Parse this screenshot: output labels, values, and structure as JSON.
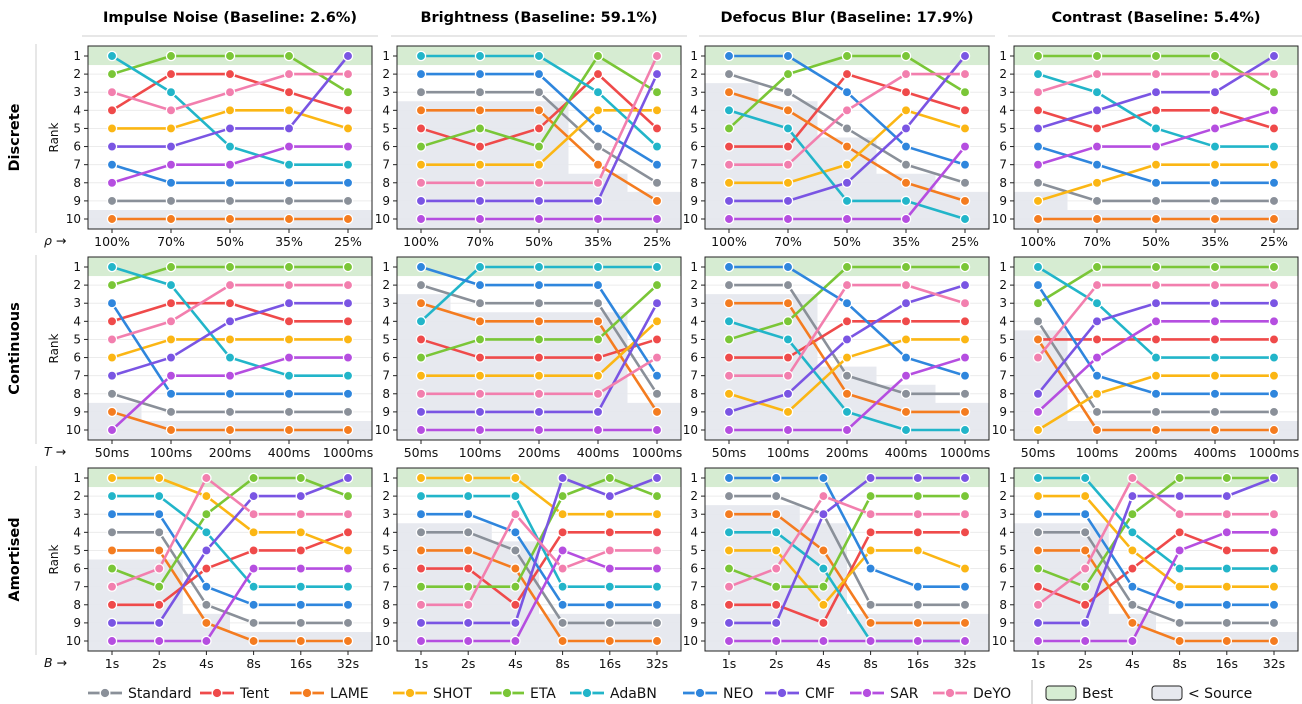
{
  "legend": {
    "series": [
      "Standard",
      "Tent",
      "LAME",
      "SHOT",
      "ETA",
      "AdaBN",
      "NEO",
      "CMF",
      "SAR",
      "DeYO"
    ],
    "best": "Best",
    "below_source": "< Source"
  },
  "colors": {
    "Standard": "#8a9099",
    "Tent": "#ef4a4a",
    "LAME": "#f47c20",
    "SHOT": "#fbb614",
    "ETA": "#7ac637",
    "AdaBN": "#22b5c9",
    "NEO": "#2f86dd",
    "CMF": "#7a55e3",
    "SAR": "#b54ee0",
    "DeYO": "#f27fae",
    "best_band": "#d6ecd2",
    "source_band": "#e6e8ee"
  },
  "columns": [
    "Impulse Noise (Baseline: 2.6%)",
    "Brightness (Baseline: 59.1%)",
    "Defocus Blur (Baseline: 17.9%)",
    "Contrast (Baseline: 5.4%)"
  ],
  "rows": [
    {
      "label": "Discrete",
      "y_label": "Rank",
      "x_prefix": "ρ →",
      "x_ticks": [
        "100%",
        "70%",
        "50%",
        "35%",
        "25%"
      ]
    },
    {
      "label": "Continuous",
      "y_label": "Rank",
      "x_prefix": "T →",
      "x_ticks": [
        "50ms",
        "100ms",
        "200ms",
        "400ms",
        "1000ms"
      ]
    },
    {
      "label": "Amortised",
      "y_label": "Rank",
      "x_prefix": "B →",
      "x_ticks": [
        "1s",
        "2s",
        "4s",
        "8s",
        "16s",
        "32s"
      ]
    }
  ],
  "y_ticks": [
    "1",
    "2",
    "3",
    "4",
    "5",
    "6",
    "7",
    "8",
    "9",
    "10"
  ],
  "chart_data": {
    "type": "line",
    "y_axis": "Rank (1 = best, 10 = worst)",
    "ylim": [
      1,
      10
    ],
    "series_order": [
      "Standard",
      "Tent",
      "LAME",
      "SHOT",
      "ETA",
      "AdaBN",
      "NEO",
      "CMF",
      "SAR",
      "DeYO"
    ],
    "panels": [
      {
        "row": "Discrete",
        "column": "Impulse Noise (Baseline: 2.6%)",
        "x": [
          "100%",
          "70%",
          "50%",
          "35%",
          "25%"
        ],
        "source_rank": 9.5,
        "ranks": {
          "Standard": [
            9,
            9,
            9,
            9,
            9
          ],
          "Tent": [
            4,
            2,
            2,
            3,
            4
          ],
          "LAME": [
            10,
            10,
            10,
            10,
            10
          ],
          "SHOT": [
            5,
            5,
            4,
            4,
            5
          ],
          "ETA": [
            2,
            1,
            1,
            1,
            3
          ],
          "AdaBN": [
            1,
            3,
            6,
            7,
            7
          ],
          "NEO": [
            7,
            8,
            8,
            8,
            8
          ],
          "CMF": [
            6,
            6,
            5,
            5,
            1
          ],
          "SAR": [
            8,
            7,
            7,
            6,
            6
          ],
          "DeYO": [
            3,
            4,
            3,
            2,
            2
          ]
        }
      },
      {
        "row": "Discrete",
        "column": "Brightness (Baseline: 59.1%)",
        "x": [
          "100%",
          "70%",
          "50%",
          "35%",
          "25%"
        ],
        "source_rank": [
          3.5,
          3.5,
          3.5,
          7.5,
          8.5
        ],
        "ranks": {
          "Standard": [
            3,
            3,
            3,
            6,
            8
          ],
          "Tent": [
            5,
            6,
            5,
            2,
            5
          ],
          "LAME": [
            4,
            4,
            4,
            7,
            9
          ],
          "SHOT": [
            7,
            7,
            7,
            4,
            4
          ],
          "ETA": [
            6,
            5,
            6,
            1,
            3
          ],
          "AdaBN": [
            1,
            1,
            1,
            3,
            6
          ],
          "NEO": [
            2,
            2,
            2,
            5,
            7
          ],
          "CMF": [
            9,
            9,
            9,
            9,
            2
          ],
          "SAR": [
            10,
            10,
            10,
            10,
            10
          ],
          "DeYO": [
            8,
            8,
            8,
            8,
            1
          ]
        }
      },
      {
        "row": "Discrete",
        "column": "Defocus Blur (Baseline: 17.9%)",
        "x": [
          "100%",
          "70%",
          "50%",
          "35%",
          "25%"
        ],
        "source_rank": [
          2.5,
          3.5,
          5.5,
          7.5,
          8.5
        ],
        "ranks": {
          "Standard": [
            2,
            3,
            5,
            7,
            8
          ],
          "Tent": [
            6,
            6,
            2,
            3,
            4
          ],
          "LAME": [
            3,
            4,
            6,
            8,
            9
          ],
          "SHOT": [
            8,
            8,
            7,
            4,
            5
          ],
          "ETA": [
            5,
            2,
            1,
            1,
            3
          ],
          "AdaBN": [
            4,
            5,
            9,
            9,
            10
          ],
          "NEO": [
            1,
            1,
            3,
            6,
            7
          ],
          "CMF": [
            9,
            9,
            8,
            5,
            1
          ],
          "SAR": [
            10,
            10,
            10,
            10,
            6
          ],
          "DeYO": [
            7,
            7,
            4,
            2,
            2
          ]
        }
      },
      {
        "row": "Discrete",
        "column": "Contrast (Baseline: 5.4%)",
        "x": [
          "100%",
          "70%",
          "50%",
          "35%",
          "25%"
        ],
        "source_rank": [
          8.5,
          9.5,
          9.5,
          9.5,
          9.5
        ],
        "ranks": {
          "Standard": [
            8,
            9,
            9,
            9,
            9
          ],
          "Tent": [
            4,
            5,
            4,
            4,
            5
          ],
          "LAME": [
            10,
            10,
            10,
            10,
            10
          ],
          "SHOT": [
            9,
            8,
            7,
            7,
            7
          ],
          "ETA": [
            1,
            1,
            1,
            1,
            3
          ],
          "AdaBN": [
            2,
            3,
            5,
            6,
            6
          ],
          "NEO": [
            6,
            7,
            8,
            8,
            8
          ],
          "CMF": [
            5,
            4,
            3,
            3,
            1
          ],
          "SAR": [
            7,
            6,
            6,
            5,
            4
          ],
          "DeYO": [
            3,
            2,
            2,
            2,
            2
          ]
        }
      },
      {
        "row": "Continuous",
        "column": "Impulse Noise (Baseline: 2.6%)",
        "x": [
          "50ms",
          "100ms",
          "200ms",
          "400ms",
          "1000ms"
        ],
        "source_rank": [
          8.5,
          9.5,
          9.5,
          9.5,
          9.5
        ],
        "ranks": {
          "Standard": [
            8,
            9,
            9,
            9,
            9
          ],
          "Tent": [
            4,
            3,
            3,
            4,
            4
          ],
          "LAME": [
            9,
            10,
            10,
            10,
            10
          ],
          "SHOT": [
            6,
            5,
            5,
            5,
            5
          ],
          "ETA": [
            2,
            1,
            1,
            1,
            1
          ],
          "AdaBN": [
            1,
            2,
            6,
            7,
            7
          ],
          "NEO": [
            3,
            8,
            8,
            8,
            8
          ],
          "CMF": [
            7,
            6,
            4,
            3,
            3
          ],
          "SAR": [
            10,
            7,
            7,
            6,
            6
          ],
          "DeYO": [
            5,
            4,
            2,
            2,
            2
          ]
        }
      },
      {
        "row": "Continuous",
        "column": "Brightness (Baseline: 59.1%)",
        "x": [
          "50ms",
          "100ms",
          "200ms",
          "400ms",
          "1000ms"
        ],
        "source_rank": [
          2.5,
          3.5,
          3.5,
          3.5,
          8.5
        ],
        "ranks": {
          "Standard": [
            2,
            3,
            3,
            3,
            8
          ],
          "Tent": [
            5,
            6,
            6,
            6,
            5
          ],
          "LAME": [
            3,
            4,
            4,
            4,
            9
          ],
          "SHOT": [
            7,
            7,
            7,
            7,
            4
          ],
          "ETA": [
            6,
            5,
            5,
            5,
            2
          ],
          "AdaBN": [
            4,
            1,
            1,
            1,
            1
          ],
          "NEO": [
            1,
            2,
            2,
            2,
            7
          ],
          "CMF": [
            9,
            9,
            9,
            9,
            3
          ],
          "SAR": [
            10,
            10,
            10,
            10,
            10
          ],
          "DeYO": [
            8,
            8,
            8,
            8,
            6
          ]
        }
      },
      {
        "row": "Continuous",
        "column": "Defocus Blur (Baseline: 17.9%)",
        "x": [
          "50ms",
          "100ms",
          "200ms",
          "400ms",
          "1000ms"
        ],
        "source_rank": [
          2.5,
          2.5,
          6.5,
          7.5,
          8.5
        ],
        "ranks": {
          "Standard": [
            2,
            2,
            7,
            8,
            8
          ],
          "Tent": [
            6,
            6,
            4,
            4,
            4
          ],
          "LAME": [
            3,
            3,
            8,
            9,
            9
          ],
          "SHOT": [
            8,
            9,
            6,
            5,
            5
          ],
          "ETA": [
            5,
            4,
            1,
            1,
            1
          ],
          "AdaBN": [
            4,
            5,
            9,
            10,
            10
          ],
          "NEO": [
            1,
            1,
            3,
            6,
            7
          ],
          "CMF": [
            9,
            8,
            5,
            3,
            2
          ],
          "SAR": [
            10,
            10,
            10,
            7,
            6
          ],
          "DeYO": [
            7,
            7,
            2,
            2,
            3
          ]
        }
      },
      {
        "row": "Continuous",
        "column": "Contrast (Baseline: 5.4%)",
        "x": [
          "50ms",
          "100ms",
          "200ms",
          "400ms",
          "1000ms"
        ],
        "source_rank": [
          4.5,
          9.5,
          9.5,
          9.5,
          9.5
        ],
        "ranks": {
          "Standard": [
            4,
            9,
            9,
            9,
            9
          ],
          "Tent": [
            5,
            5,
            5,
            5,
            5
          ],
          "LAME": [
            5,
            10,
            10,
            10,
            10
          ],
          "SHOT": [
            10,
            8,
            7,
            7,
            7
          ],
          "ETA": [
            3,
            1,
            1,
            1,
            1
          ],
          "AdaBN": [
            1,
            3,
            6,
            6,
            6
          ],
          "NEO": [
            2,
            7,
            8,
            8,
            8
          ],
          "CMF": [
            8,
            4,
            3,
            3,
            3
          ],
          "SAR": [
            9,
            6,
            4,
            4,
            4
          ],
          "DeYO": [
            6,
            2,
            2,
            2,
            2
          ]
        }
      },
      {
        "row": "Amortised",
        "column": "Impulse Noise (Baseline: 2.6%)",
        "x": [
          "1s",
          "2s",
          "4s",
          "8s",
          "16s",
          "32s"
        ],
        "source_rank": [
          5.5,
          5.5,
          8.5,
          9.5,
          9.5,
          9.5
        ],
        "ranks": {
          "Standard": [
            4,
            4,
            8,
            9,
            9,
            9
          ],
          "Tent": [
            8,
            8,
            6,
            5,
            5,
            4
          ],
          "LAME": [
            5,
            5,
            9,
            10,
            10,
            10
          ],
          "SHOT": [
            1,
            1,
            2,
            4,
            4,
            5
          ],
          "ETA": [
            6,
            7,
            3,
            1,
            1,
            2
          ],
          "AdaBN": [
            2,
            2,
            4,
            7,
            7,
            7
          ],
          "NEO": [
            3,
            3,
            7,
            8,
            8,
            8
          ],
          "CMF": [
            9,
            9,
            5,
            2,
            2,
            1
          ],
          "SAR": [
            10,
            10,
            10,
            6,
            6,
            6
          ],
          "DeYO": [
            7,
            6,
            1,
            3,
            3,
            3
          ]
        }
      },
      {
        "row": "Amortised",
        "column": "Brightness (Baseline: 59.1%)",
        "x": [
          "1s",
          "2s",
          "4s",
          "8s",
          "16s",
          "32s"
        ],
        "source_rank": [
          3.5,
          3.5,
          4.5,
          8.5,
          8.5,
          8.5
        ],
        "ranks": {
          "Standard": [
            4,
            4,
            5,
            9,
            9,
            9
          ],
          "Tent": [
            6,
            6,
            8,
            4,
            4,
            4
          ],
          "LAME": [
            5,
            5,
            6,
            10,
            10,
            10
          ],
          "SHOT": [
            1,
            1,
            1,
            3,
            3,
            3
          ],
          "ETA": [
            7,
            7,
            7,
            2,
            1,
            2
          ],
          "AdaBN": [
            2,
            2,
            2,
            7,
            7,
            7
          ],
          "NEO": [
            3,
            3,
            4,
            8,
            8,
            8
          ],
          "CMF": [
            9,
            9,
            9,
            1,
            2,
            1
          ],
          "SAR": [
            10,
            10,
            10,
            5,
            6,
            6
          ],
          "DeYO": [
            8,
            8,
            3,
            6,
            5,
            5
          ]
        }
      },
      {
        "row": "Amortised",
        "column": "Defocus Blur (Baseline: 17.9%)",
        "x": [
          "1s",
          "2s",
          "4s",
          "8s",
          "16s",
          "32s"
        ],
        "source_rank": [
          2.5,
          2.5,
          3.5,
          8.5,
          8.5,
          8.5
        ],
        "ranks": {
          "Standard": [
            2,
            2,
            3,
            8,
            8,
            8
          ],
          "Tent": [
            8,
            8,
            9,
            4,
            4,
            4
          ],
          "LAME": [
            3,
            3,
            5,
            9,
            9,
            9
          ],
          "SHOT": [
            5,
            5,
            8,
            5,
            5,
            6
          ],
          "ETA": [
            6,
            7,
            7,
            2,
            2,
            2
          ],
          "AdaBN": [
            4,
            4,
            6,
            10,
            10,
            10
          ],
          "NEO": [
            1,
            1,
            1,
            6,
            7,
            7
          ],
          "CMF": [
            9,
            9,
            3,
            1,
            1,
            1
          ],
          "SAR": [
            10,
            10,
            10,
            10,
            10,
            10
          ],
          "DeYO": [
            7,
            6,
            2,
            3,
            3,
            3
          ]
        }
      },
      {
        "row": "Amortised",
        "column": "Contrast (Baseline: 5.4%)",
        "x": [
          "1s",
          "2s",
          "4s",
          "8s",
          "16s",
          "32s"
        ],
        "source_rank": [
          3.5,
          3.5,
          8.5,
          9.5,
          9.5,
          9.5
        ],
        "ranks": {
          "Standard": [
            4,
            4,
            8,
            9,
            9,
            9
          ],
          "Tent": [
            7,
            8,
            6,
            4,
            5,
            5
          ],
          "LAME": [
            5,
            5,
            9,
            10,
            10,
            10
          ],
          "SHOT": [
            2,
            2,
            5,
            7,
            7,
            7
          ],
          "ETA": [
            6,
            7,
            3,
            1,
            1,
            1
          ],
          "AdaBN": [
            1,
            1,
            4,
            6,
            6,
            6
          ],
          "NEO": [
            3,
            3,
            7,
            8,
            8,
            8
          ],
          "CMF": [
            9,
            9,
            2,
            2,
            2,
            1
          ],
          "SAR": [
            10,
            10,
            10,
            5,
            4,
            4
          ],
          "DeYO": [
            8,
            6,
            1,
            3,
            3,
            3
          ]
        }
      }
    ]
  }
}
